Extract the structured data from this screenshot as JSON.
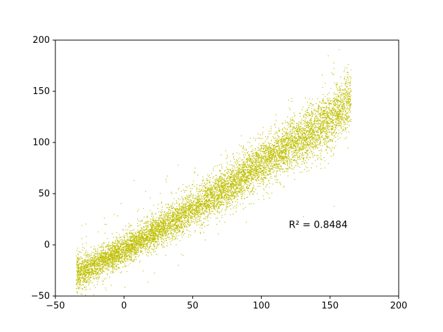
{
  "chart_data": {
    "type": "scatter",
    "title": "",
    "xlabel": "",
    "ylabel": "",
    "xlim": [
      -50,
      200
    ],
    "ylim": [
      -50,
      200
    ],
    "xticks": [
      -50,
      0,
      50,
      100,
      150,
      200
    ],
    "yticks": [
      -50,
      0,
      50,
      100,
      150,
      200
    ],
    "xtick_labels": [
      "−50",
      "0",
      "50",
      "100",
      "150",
      "200"
    ],
    "ytick_labels": [
      "−50",
      "0",
      "50",
      "100",
      "150",
      "200"
    ],
    "grid": false,
    "legend": "none",
    "marker_color": "#bfbf00",
    "annotation": {
      "text": "R² = 0.8484",
      "x": 120,
      "y": 20
    },
    "trend_points": [
      {
        "x": -35,
        "y": -28
      },
      {
        "x": -20,
        "y": -18
      },
      {
        "x": 0,
        "y": -4
      },
      {
        "x": 25,
        "y": 15
      },
      {
        "x": 50,
        "y": 36
      },
      {
        "x": 75,
        "y": 57
      },
      {
        "x": 100,
        "y": 80
      },
      {
        "x": 125,
        "y": 102
      },
      {
        "x": 150,
        "y": 122
      },
      {
        "x": 165,
        "y": 145
      }
    ]
  }
}
